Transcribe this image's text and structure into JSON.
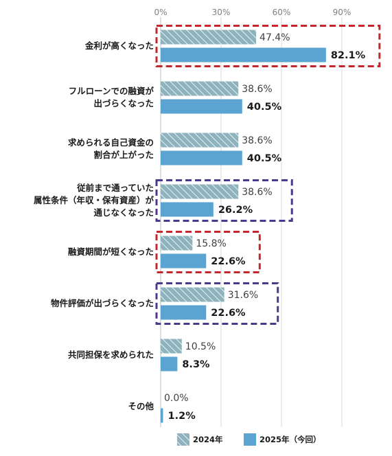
{
  "chart_data": {
    "type": "bar",
    "orientation": "horizontal",
    "categories": [
      [
        "金利が高くなった"
      ],
      [
        "フルローンでの融資が",
        "出づらくなった"
      ],
      [
        "求められる自己資金の",
        "割合が上がった"
      ],
      [
        "従前まで通っていた",
        "属性条件（年収・保有資産）が",
        "通じなくなった"
      ],
      [
        "融資期間が短くなった"
      ],
      [
        "物件評価が出づらくなった"
      ],
      [
        "共同担保を求められた"
      ],
      [
        "その他"
      ]
    ],
    "series": [
      {
        "name": "2024年",
        "values": [
          47.4,
          38.6,
          38.6,
          38.6,
          15.8,
          31.6,
          10.5,
          0.0
        ],
        "labels": [
          "47.4%",
          "38.6%",
          "38.6%",
          "38.6%",
          "15.8%",
          "31.6%",
          "10.5%",
          "0.0%"
        ],
        "color": "#8fb3bd",
        "pattern": "diagonal-hatch"
      },
      {
        "name": "2025年（今回）",
        "values": [
          82.1,
          40.5,
          40.5,
          26.2,
          22.6,
          22.6,
          8.3,
          1.2
        ],
        "labels": [
          "82.1%",
          "40.5%",
          "40.5%",
          "26.2%",
          "22.6%",
          "22.6%",
          "8.3%",
          "1.2%"
        ],
        "color": "#5ba3d0"
      }
    ],
    "x_ticks": [
      "0%",
      "30%",
      "60%",
      "90%"
    ],
    "x_tick_values": [
      0,
      30,
      60,
      90
    ],
    "xlim": [
      0,
      90
    ],
    "grid": true,
    "legend_position": "bottom",
    "highlights": [
      {
        "category_index": 0,
        "color": "#c0282d",
        "style": "dashed"
      },
      {
        "category_index": 3,
        "color": "#4a3a8c",
        "style": "dashed"
      },
      {
        "category_index": 4,
        "color": "#c0282d",
        "style": "dashed"
      },
      {
        "category_index": 5,
        "color": "#4a3a8c",
        "style": "dashed"
      }
    ]
  }
}
